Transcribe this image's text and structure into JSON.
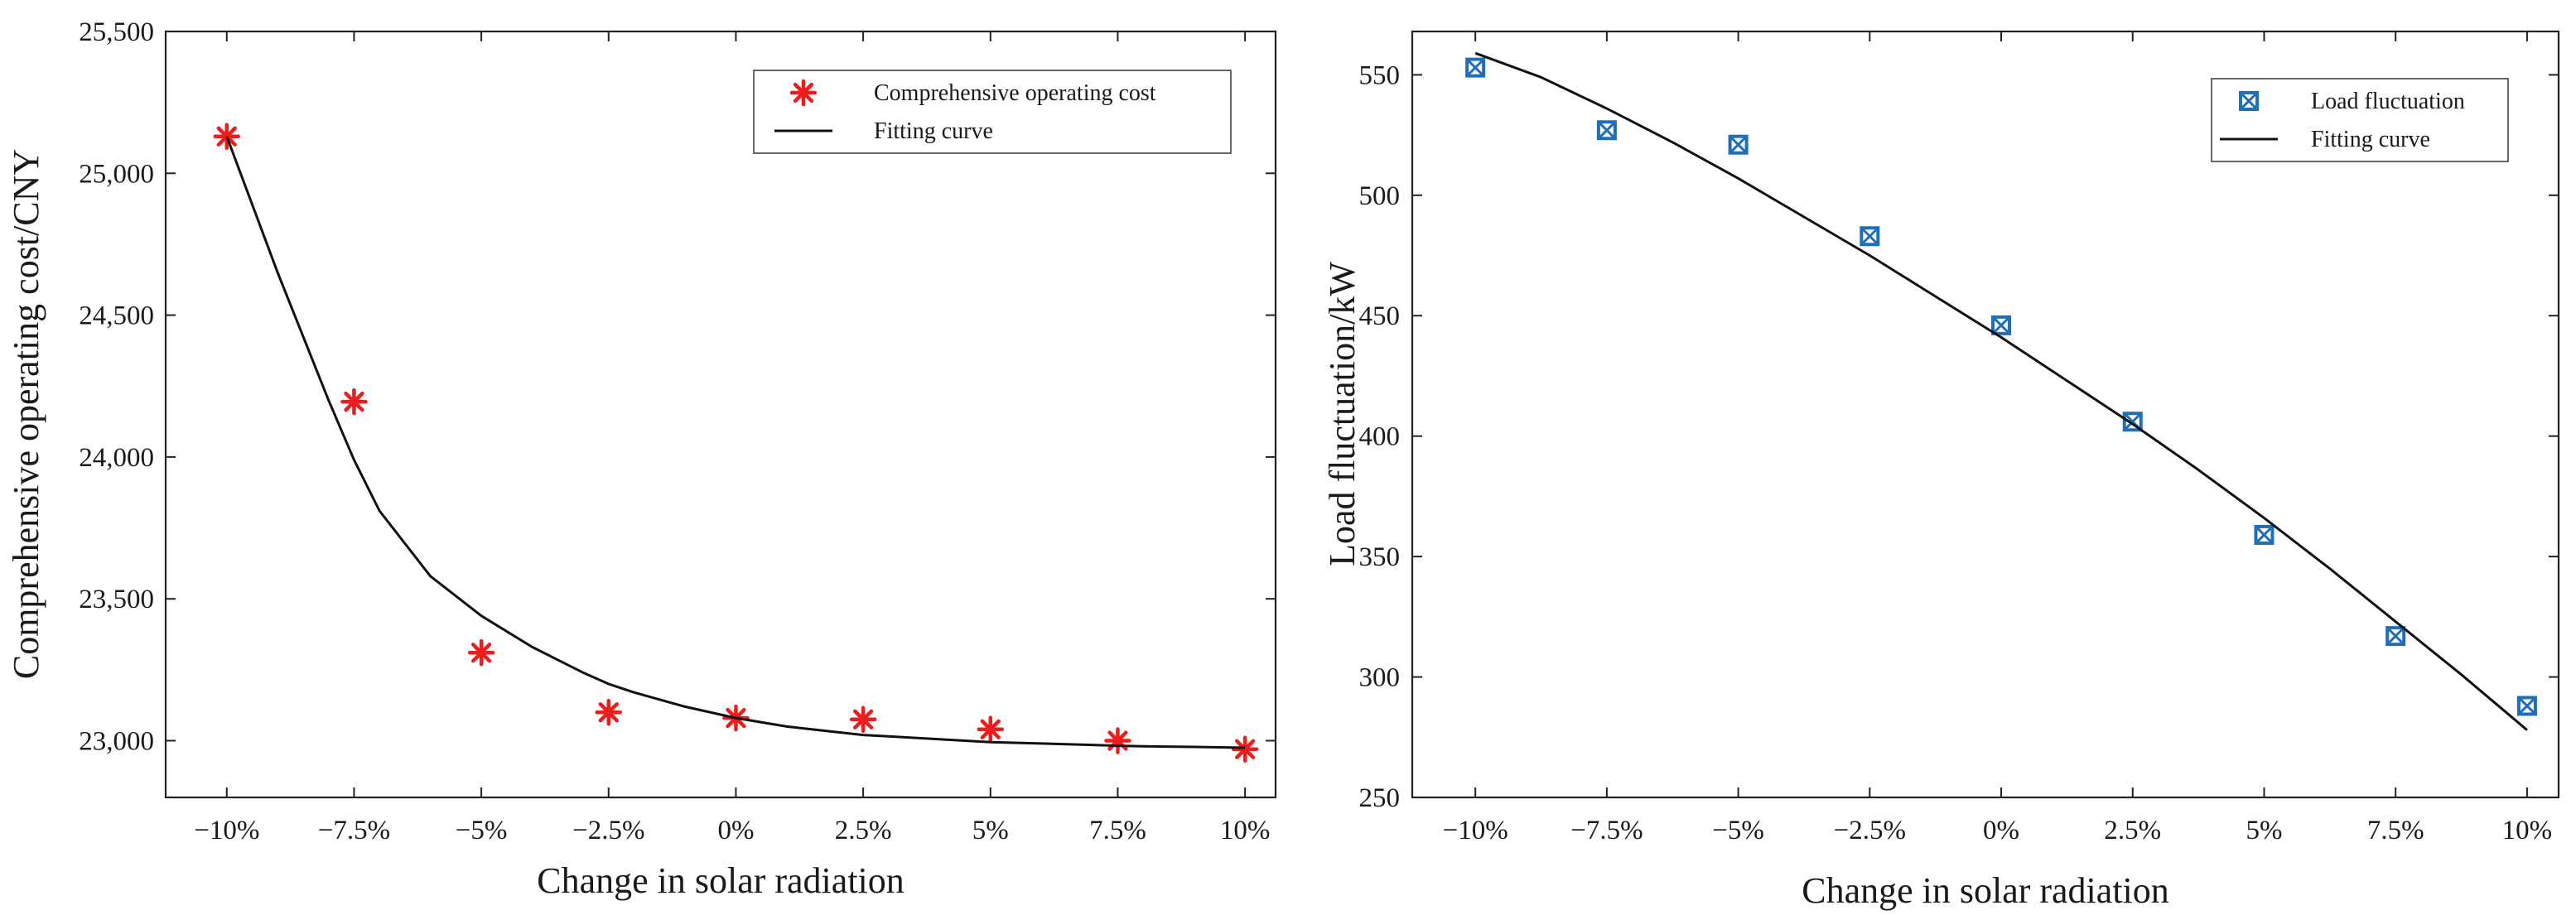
{
  "chart_data": [
    {
      "type": "scatter",
      "title": "",
      "xlabel": "Change in solar radiation",
      "ylabel": "Comprehensive operating cost/CNY",
      "categories": [
        "−10%",
        "−7.5%",
        "−5%",
        "−2.5%",
        "0%",
        "2.5%",
        "5%",
        "7.5%",
        "10%"
      ],
      "x": [
        -10,
        -7.5,
        -5,
        -2.5,
        0,
        2.5,
        5,
        7.5,
        10
      ],
      "xlim": [
        -11.2,
        10.6
      ],
      "ylim": [
        22800,
        25500
      ],
      "yticks": [
        23000,
        23500,
        24000,
        24500,
        25000,
        25500
      ],
      "ytick_labels": [
        "23,000",
        "23,500",
        "24,000",
        "24,500",
        "25,000",
        "25,500"
      ],
      "grid": false,
      "legend_position": "top-right",
      "series": [
        {
          "name": "Comprehensive operating cost",
          "kind": "markers",
          "marker": "asterisk",
          "color": "#ee1c1c",
          "values": [
            25130,
            24195,
            23310,
            23100,
            23080,
            23075,
            23040,
            23000,
            22970
          ]
        },
        {
          "name": "Fitting curve",
          "kind": "line",
          "color": "#111111",
          "x": [
            -10,
            -9,
            -8,
            -7.5,
            -7,
            -6,
            -5,
            -4,
            -3,
            -2.5,
            -2,
            -1,
            0,
            1,
            2,
            2.5,
            3,
            4,
            5,
            6,
            7,
            7.5,
            8,
            9,
            10
          ],
          "values": [
            25130,
            24650,
            24200,
            23990,
            23810,
            23580,
            23440,
            23330,
            23240,
            23200,
            23170,
            23120,
            23080,
            23050,
            23030,
            23020,
            23015,
            23005,
            22995,
            22990,
            22985,
            22982,
            22980,
            22978,
            22975
          ]
        }
      ]
    },
    {
      "type": "scatter",
      "title": "",
      "xlabel": "Change in solar radiation",
      "ylabel": "Load fluctuation/kW",
      "categories": [
        "−10%",
        "−7.5%",
        "−5%",
        "−2.5%",
        "0%",
        "2.5%",
        "5%",
        "7.5%",
        "10%"
      ],
      "x": [
        -10,
        -7.5,
        -5,
        -2.5,
        0,
        2.5,
        5,
        7.5,
        10
      ],
      "xlim": [
        -11.2,
        10.6
      ],
      "ylim": [
        250,
        568
      ],
      "yticks": [
        250,
        300,
        350,
        400,
        450,
        500,
        550
      ],
      "ytick_labels": [
        "250",
        "300",
        "350",
        "400",
        "450",
        "500",
        "550"
      ],
      "grid": false,
      "legend_position": "top-right",
      "series": [
        {
          "name": "Load fluctuation",
          "kind": "markers",
          "marker": "boxed-x",
          "color": "#1f6fb8",
          "values": [
            553,
            527,
            521,
            483,
            446,
            406,
            359,
            317,
            288
          ]
        },
        {
          "name": "Fitting curve",
          "kind": "line",
          "color": "#111111",
          "x": [
            -10,
            -8.75,
            -7.5,
            -6.25,
            -5,
            -3.75,
            -2.5,
            -1.25,
            0,
            1.25,
            2.5,
            3.75,
            5,
            6.25,
            7.5,
            8.75,
            10
          ],
          "values": [
            559,
            549,
            536,
            522,
            507,
            491,
            475,
            458,
            441,
            423,
            405,
            386,
            366,
            345,
            323,
            301,
            278
          ]
        }
      ]
    }
  ]
}
